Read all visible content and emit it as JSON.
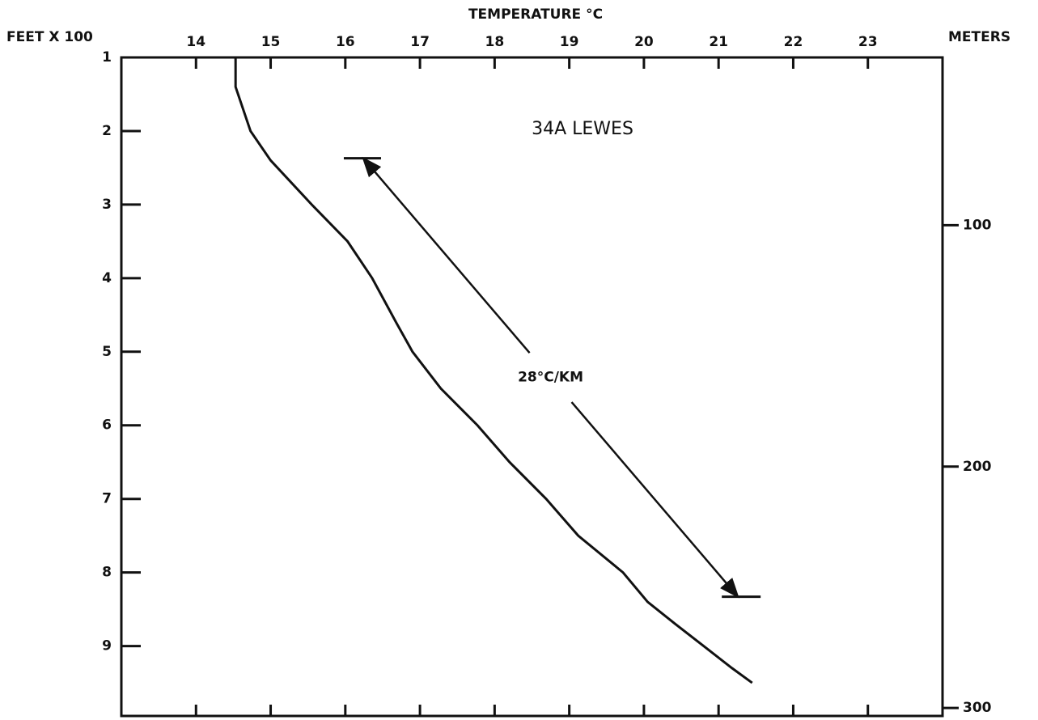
{
  "chart_data": {
    "type": "line",
    "title": "TEMPERATURE °C",
    "y_label": "FEET X 100",
    "y2_label": "METERS",
    "annotation": "34A LEWES",
    "xlim": [
      13,
      24
    ],
    "xticks": [
      14,
      15,
      16,
      17,
      18,
      19,
      20,
      21,
      22,
      23
    ],
    "ylim": [
      1,
      9.95
    ],
    "yticks": [
      1,
      2,
      3,
      4,
      5,
      6,
      7,
      8,
      9
    ],
    "y2lim": [
      30.48,
      303.3
    ],
    "y2ticks": [
      100,
      200,
      300
    ],
    "series": [
      {
        "color": "#111111",
        "x": [
          14.53,
          14.53,
          14.73,
          15.0,
          15.55,
          16.03,
          16.36,
          16.68,
          16.9,
          17.28,
          17.77,
          18.2,
          18.69,
          19.12,
          19.72,
          20.05,
          20.42,
          20.8,
          21.18,
          21.45
        ],
        "y": [
          1,
          1.4,
          2,
          2.4,
          3,
          3.5,
          4,
          4.6,
          5,
          5.5,
          6,
          6.5,
          7,
          7.5,
          8,
          8.4,
          8.7,
          9,
          9.3,
          9.5
        ]
      }
    ],
    "gradient_arrow": {
      "label": "28°C/KM",
      "x": [
        16.24,
        21.26
      ],
      "y": [
        2.37,
        8.33
      ]
    }
  }
}
